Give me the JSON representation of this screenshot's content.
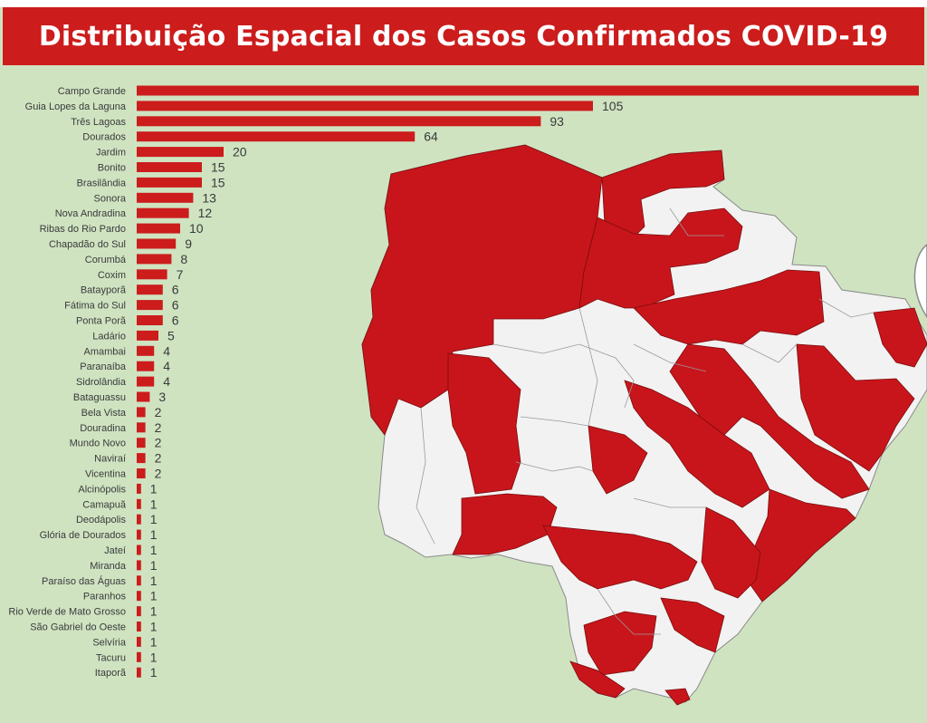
{
  "header": {
    "title": "Distribuição Espacial dos Casos Confirmados COVID-19"
  },
  "colors": {
    "background": "#cfe3c1",
    "bar": "#cc1c1c",
    "title_bar": "#cc1c1c",
    "map_affected": "#c8151b",
    "map_unaffected": "#f2f2f2"
  },
  "chart_data": {
    "type": "bar",
    "orientation": "horizontal",
    "title": "Distribuição Espacial dos Casos Confirmados COVID-19",
    "categories": [
      "Campo Grande",
      "Guia Lopes da Laguna",
      "Três Lagoas",
      "Dourados",
      "Jardim",
      "Bonito",
      "Brasilândia",
      "Sonora",
      "Nova Andradina",
      "Ribas do Rio Pardo",
      "Chapadão do Sul",
      "Corumbá",
      "Coxim",
      "Batayporã",
      "Fátima do Sul",
      "Ponta Porã",
      "Ladário",
      "Amambai",
      "Paranaíba",
      "Sidrolândia",
      "Bataguassu",
      "Bela Vista",
      "Douradina",
      "Mundo Novo",
      "Naviraí",
      "Vicentina",
      "Alcinópolis",
      "Camapuã",
      "Deodápolis",
      "Glória de Dourados",
      "Jateí",
      "Miranda",
      "Paraíso das Águas",
      "Paranhos",
      "Rio Verde de Mato Grosso",
      "São Gabriel do Oeste",
      "Selvíria",
      "Tacuru",
      "Itaporã"
    ],
    "values": [
      180,
      105,
      93,
      64,
      20,
      15,
      15,
      13,
      12,
      10,
      9,
      8,
      7,
      6,
      6,
      6,
      5,
      4,
      4,
      4,
      3,
      2,
      2,
      2,
      2,
      2,
      1,
      1,
      1,
      1,
      1,
      1,
      1,
      1,
      1,
      1,
      1,
      1,
      1
    ],
    "value_labels": [
      "",
      "105",
      "93",
      "64",
      "20",
      "15",
      "15",
      "13",
      "12",
      "10",
      "9",
      "8",
      "7",
      "6",
      "6",
      "6",
      "5",
      "4",
      "4",
      "4",
      "3",
      "2",
      "2",
      "2",
      "2",
      "2",
      "1",
      "1",
      "1",
      "1",
      "1",
      "1",
      "1",
      "1",
      "1",
      "1",
      "1",
      "1",
      "1"
    ],
    "xlabel": "",
    "ylabel": "",
    "grid": false,
    "legend": "none"
  }
}
